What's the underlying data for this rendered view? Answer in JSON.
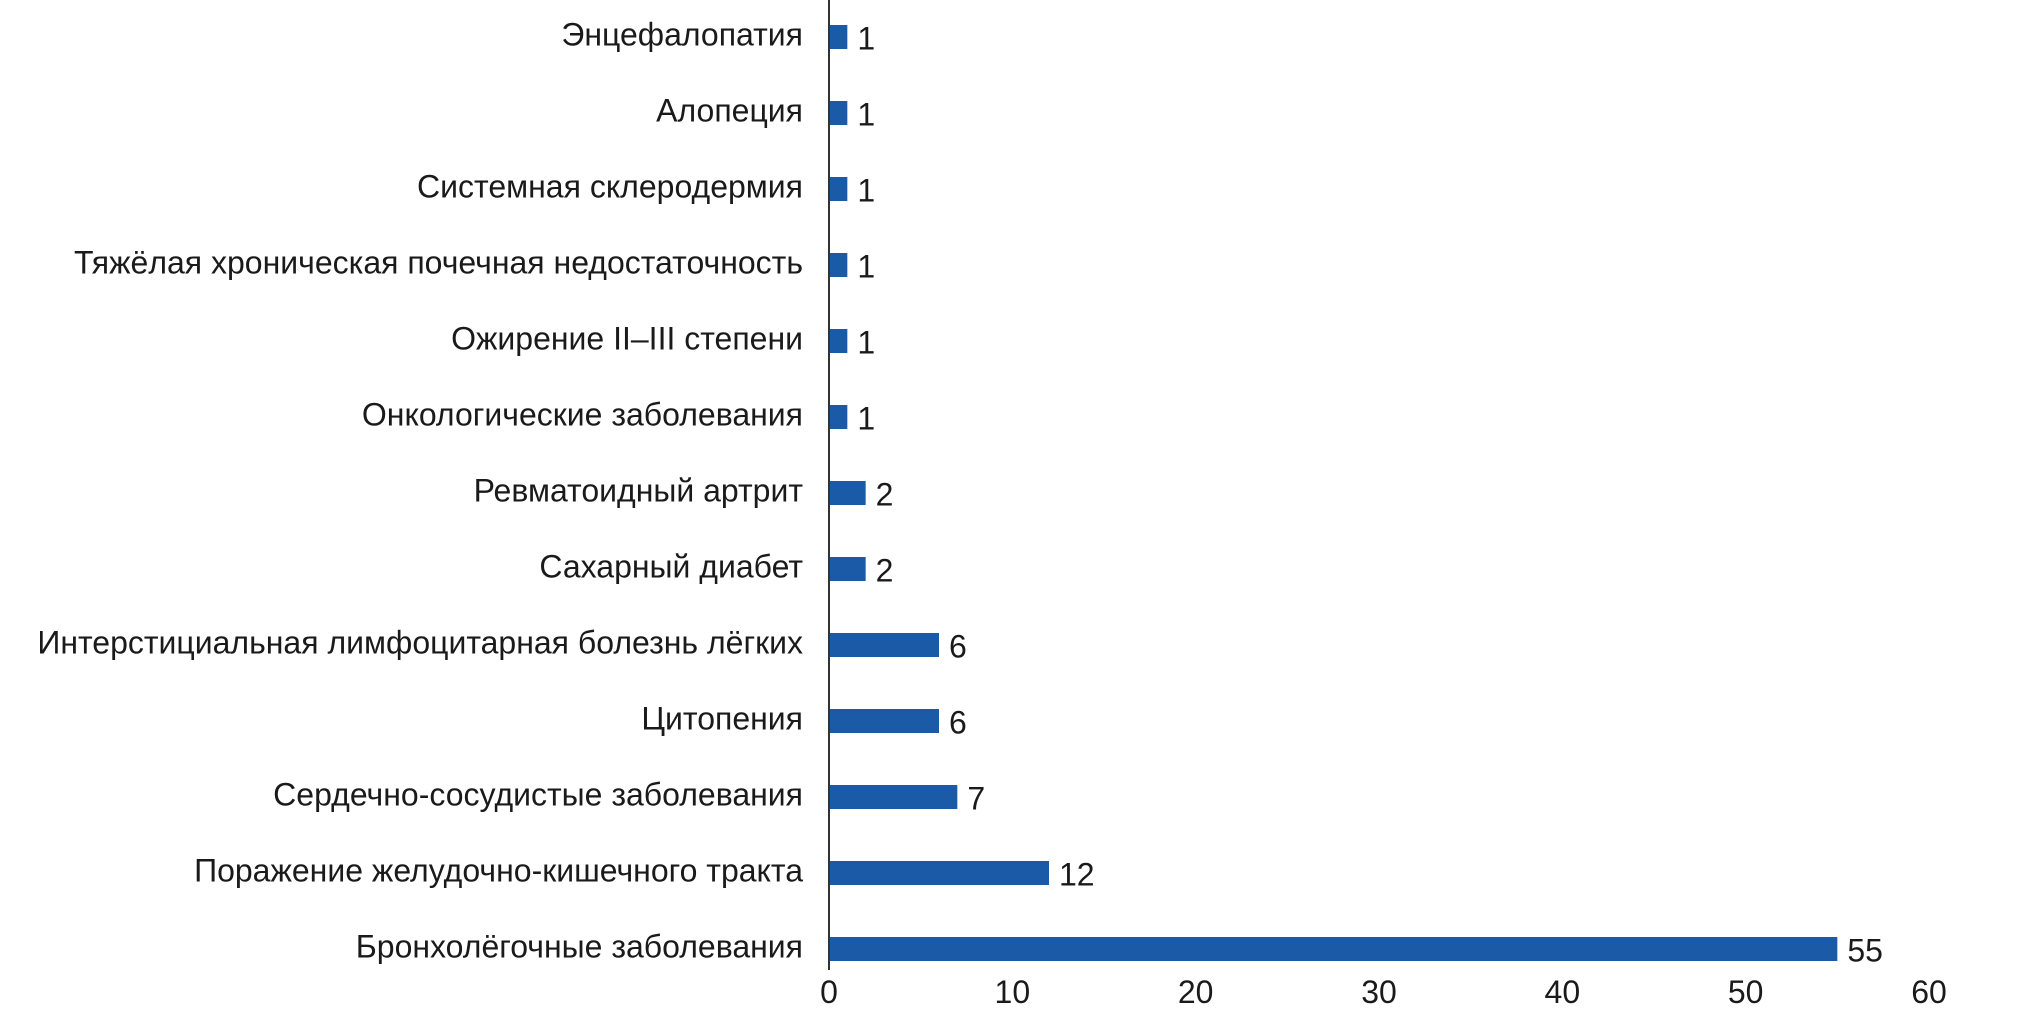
{
  "chart_data": {
    "type": "bar",
    "orientation": "horizontal",
    "title": "",
    "xlabel": "",
    "ylabel": "",
    "categories": [
      "Энцефалопатия",
      "Алопеция",
      "Системная склеродермия",
      "Тяжёлая хроническая почечная недостаточность",
      "Ожирение II–III степени",
      "Онкологические заболевания",
      "Ревматоидный артрит",
      "Сахарный диабет",
      "Интерстициальная лимфоцитарная болезнь лёгких",
      "Цитопения",
      "Сердечно-сосудистые заболевания",
      "Поражение желудочно-кишечного тракта",
      "Бронхолёгочные заболевания"
    ],
    "values": [
      1,
      1,
      1,
      1,
      1,
      1,
      2,
      2,
      6,
      6,
      7,
      12,
      55
    ],
    "data_labels": [
      "1",
      "1",
      "1",
      "1",
      "1",
      "1",
      "2",
      "2",
      "6",
      "6",
      "7",
      "12",
      "55"
    ],
    "xlim": [
      0,
      60
    ],
    "xticks": [
      0,
      10,
      20,
      30,
      40,
      50,
      60
    ],
    "xtick_labels": [
      "0",
      "10",
      "20",
      "30",
      "40",
      "50",
      "60"
    ],
    "grid": false,
    "legend": "none",
    "bar_color": "#1a5aa6"
  }
}
